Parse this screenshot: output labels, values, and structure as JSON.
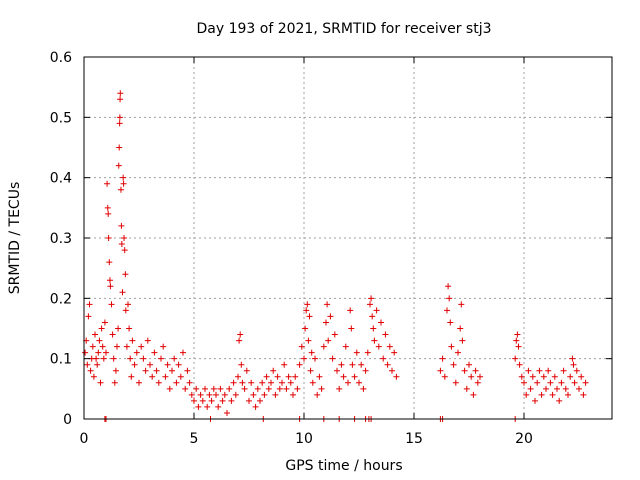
{
  "chart_data": {
    "type": "scatter",
    "title": "Day 193 of 2021, SRMTID for receiver stj3",
    "xlabel": "GPS time / hours",
    "ylabel": "SRMTID / TECUs",
    "xlim": [
      0,
      24
    ],
    "ylim": [
      0,
      0.6
    ],
    "xticks": [
      0,
      5,
      10,
      15,
      20
    ],
    "yticks": [
      0,
      0.1,
      0.2,
      0.3,
      0.4,
      0.5,
      0.6
    ],
    "xtick_labels": [
      "0",
      "5",
      "10",
      "15",
      "20"
    ],
    "ytick_labels": [
      "0",
      "0.1",
      "0.2",
      "0.3",
      "0.4",
      "0.5",
      "0.6"
    ],
    "grid": true,
    "legend": "none",
    "marker": "+",
    "color": "#e00000",
    "series": [
      {
        "name": "SRMTID",
        "points": [
          [
            0.05,
            0.11
          ],
          [
            0.1,
            0.13
          ],
          [
            0.15,
            0.09
          ],
          [
            0.2,
            0.17
          ],
          [
            0.25,
            0.19
          ],
          [
            0.3,
            0.08
          ],
          [
            0.35,
            0.1
          ],
          [
            0.4,
            0.12
          ],
          [
            0.45,
            0.07
          ],
          [
            0.5,
            0.14
          ],
          [
            0.55,
            0.1
          ],
          [
            0.6,
            0.09
          ],
          [
            0.65,
            0.11
          ],
          [
            0.7,
            0.13
          ],
          [
            0.75,
            0.06
          ],
          [
            0.8,
            0.15
          ],
          [
            0.85,
            0.12
          ],
          [
            0.9,
            0.1
          ],
          [
            0.95,
            0.16
          ],
          [
            1.0,
            0.11
          ],
          [
            1.05,
            0.39
          ],
          [
            1.08,
            0.35
          ],
          [
            1.1,
            0.34
          ],
          [
            1.12,
            0.3
          ],
          [
            1.15,
            0.26
          ],
          [
            1.18,
            0.23
          ],
          [
            1.2,
            0.22
          ],
          [
            1.25,
            0.19
          ],
          [
            1.3,
            0.14
          ],
          [
            1.35,
            0.1
          ],
          [
            1.4,
            0.06
          ],
          [
            1.45,
            0.08
          ],
          [
            1.5,
            0.12
          ],
          [
            1.55,
            0.15
          ],
          [
            1.58,
            0.42
          ],
          [
            1.6,
            0.45
          ],
          [
            1.62,
            0.49
          ],
          [
            1.63,
            0.5
          ],
          [
            1.64,
            0.53
          ],
          [
            1.65,
            0.54
          ],
          [
            1.68,
            0.38
          ],
          [
            1.7,
            0.32
          ],
          [
            1.72,
            0.29
          ],
          [
            1.75,
            0.21
          ],
          [
            1.78,
            0.4
          ],
          [
            1.8,
            0.39
          ],
          [
            1.82,
            0.3
          ],
          [
            1.85,
            0.28
          ],
          [
            1.88,
            0.24
          ],
          [
            1.9,
            0.18
          ],
          [
            1.95,
            0.12
          ],
          [
            2.0,
            0.19
          ],
          [
            2.05,
            0.15
          ],
          [
            2.1,
            0.1
          ],
          [
            2.15,
            0.07
          ],
          [
            2.2,
            0.13
          ],
          [
            2.3,
            0.09
          ],
          [
            2.4,
            0.11
          ],
          [
            2.5,
            0.06
          ],
          [
            2.6,
            0.12
          ],
          [
            2.7,
            0.1
          ],
          [
            2.8,
            0.08
          ],
          [
            2.9,
            0.13
          ],
          [
            3.0,
            0.09
          ],
          [
            3.1,
            0.07
          ],
          [
            3.2,
            0.11
          ],
          [
            3.3,
            0.08
          ],
          [
            3.4,
            0.06
          ],
          [
            3.5,
            0.1
          ],
          [
            3.6,
            0.12
          ],
          [
            3.7,
            0.07
          ],
          [
            3.8,
            0.09
          ],
          [
            3.9,
            0.05
          ],
          [
            4.0,
            0.08
          ],
          [
            4.1,
            0.1
          ],
          [
            4.2,
            0.06
          ],
          [
            4.3,
            0.09
          ],
          [
            4.4,
            0.07
          ],
          [
            4.5,
            0.11
          ],
          [
            4.6,
            0.05
          ],
          [
            4.7,
            0.08
          ],
          [
            4.8,
            0.06
          ],
          [
            4.9,
            0.04
          ],
          [
            5.0,
            0.03
          ],
          [
            5.1,
            0.05
          ],
          [
            5.2,
            0.02
          ],
          [
            5.3,
            0.04
          ],
          [
            5.4,
            0.03
          ],
          [
            5.5,
            0.05
          ],
          [
            5.6,
            0.02
          ],
          [
            5.7,
            0.04
          ],
          [
            5.8,
            0.03
          ],
          [
            5.9,
            0.05
          ],
          [
            6.0,
            0.04
          ],
          [
            6.1,
            0.02
          ],
          [
            6.2,
            0.05
          ],
          [
            6.3,
            0.03
          ],
          [
            6.4,
            0.04
          ],
          [
            6.5,
            0.01
          ],
          [
            6.6,
            0.05
          ],
          [
            6.7,
            0.03
          ],
          [
            6.8,
            0.06
          ],
          [
            6.9,
            0.04
          ],
          [
            7.0,
            0.07
          ],
          [
            7.05,
            0.13
          ],
          [
            7.1,
            0.14
          ],
          [
            7.15,
            0.09
          ],
          [
            7.2,
            0.06
          ],
          [
            7.3,
            0.05
          ],
          [
            7.4,
            0.08
          ],
          [
            7.5,
            0.03
          ],
          [
            7.6,
            0.06
          ],
          [
            7.7,
            0.04
          ],
          [
            7.8,
            0.02
          ],
          [
            7.9,
            0.05
          ],
          [
            8.0,
            0.03
          ],
          [
            8.1,
            0.06
          ],
          [
            8.2,
            0.04
          ],
          [
            8.3,
            0.07
          ],
          [
            8.4,
            0.05
          ],
          [
            8.5,
            0.06
          ],
          [
            8.6,
            0.08
          ],
          [
            8.7,
            0.04
          ],
          [
            8.8,
            0.07
          ],
          [
            8.9,
            0.05
          ],
          [
            9.0,
            0.06
          ],
          [
            9.1,
            0.09
          ],
          [
            9.2,
            0.05
          ],
          [
            9.3,
            0.07
          ],
          [
            9.4,
            0.06
          ],
          [
            9.5,
            0.04
          ],
          [
            9.6,
            0.07
          ],
          [
            9.7,
            0.05
          ],
          [
            9.8,
            0.09
          ],
          [
            9.9,
            0.12
          ],
          [
            10.0,
            0.1
          ],
          [
            10.05,
            0.15
          ],
          [
            10.1,
            0.18
          ],
          [
            10.15,
            0.19
          ],
          [
            10.2,
            0.13
          ],
          [
            10.25,
            0.17
          ],
          [
            10.3,
            0.08
          ],
          [
            10.35,
            0.11
          ],
          [
            10.4,
            0.06
          ],
          [
            10.5,
            0.1
          ],
          [
            10.6,
            0.04
          ],
          [
            10.7,
            0.07
          ],
          [
            10.8,
            0.05
          ],
          [
            10.9,
            0.12
          ],
          [
            11.0,
            0.16
          ],
          [
            11.05,
            0.19
          ],
          [
            11.1,
            0.13
          ],
          [
            11.2,
            0.17
          ],
          [
            11.3,
            0.1
          ],
          [
            11.4,
            0.14
          ],
          [
            11.5,
            0.08
          ],
          [
            11.6,
            0.05
          ],
          [
            11.7,
            0.09
          ],
          [
            11.8,
            0.07
          ],
          [
            11.9,
            0.12
          ],
          [
            12.0,
            0.06
          ],
          [
            12.1,
            0.18
          ],
          [
            12.15,
            0.15
          ],
          [
            12.2,
            0.09
          ],
          [
            12.3,
            0.07
          ],
          [
            12.4,
            0.11
          ],
          [
            12.5,
            0.06
          ],
          [
            12.6,
            0.09
          ],
          [
            12.7,
            0.05
          ],
          [
            12.8,
            0.08
          ],
          [
            12.9,
            0.11
          ],
          [
            13.0,
            0.19
          ],
          [
            13.05,
            0.2
          ],
          [
            13.1,
            0.17
          ],
          [
            13.15,
            0.15
          ],
          [
            13.2,
            0.13
          ],
          [
            13.3,
            0.18
          ],
          [
            13.4,
            0.12
          ],
          [
            13.5,
            0.16
          ],
          [
            13.6,
            0.1
          ],
          [
            13.7,
            0.14
          ],
          [
            13.8,
            0.09
          ],
          [
            13.9,
            0.12
          ],
          [
            14.0,
            0.08
          ],
          [
            14.1,
            0.11
          ],
          [
            14.2,
            0.07
          ],
          [
            16.2,
            0.08
          ],
          [
            16.3,
            0.1
          ],
          [
            16.4,
            0.07
          ],
          [
            16.5,
            0.18
          ],
          [
            16.55,
            0.22
          ],
          [
            16.6,
            0.2
          ],
          [
            16.65,
            0.16
          ],
          [
            16.7,
            0.12
          ],
          [
            16.8,
            0.09
          ],
          [
            16.9,
            0.06
          ],
          [
            17.0,
            0.11
          ],
          [
            17.1,
            0.15
          ],
          [
            17.15,
            0.19
          ],
          [
            17.2,
            0.13
          ],
          [
            17.3,
            0.08
          ],
          [
            17.4,
            0.05
          ],
          [
            17.5,
            0.09
          ],
          [
            17.6,
            0.07
          ],
          [
            17.7,
            0.04
          ],
          [
            17.8,
            0.08
          ],
          [
            17.9,
            0.06
          ],
          [
            18.0,
            0.07
          ],
          [
            19.6,
            0.1
          ],
          [
            19.65,
            0.13
          ],
          [
            19.7,
            0.14
          ],
          [
            19.75,
            0.12
          ],
          [
            19.8,
            0.09
          ],
          [
            19.9,
            0.07
          ],
          [
            20.0,
            0.06
          ],
          [
            20.1,
            0.04
          ],
          [
            20.2,
            0.08
          ],
          [
            20.3,
            0.05
          ],
          [
            20.4,
            0.07
          ],
          [
            20.5,
            0.03
          ],
          [
            20.6,
            0.06
          ],
          [
            20.7,
            0.08
          ],
          [
            20.8,
            0.04
          ],
          [
            20.9,
            0.07
          ],
          [
            21.0,
            0.05
          ],
          [
            21.1,
            0.08
          ],
          [
            21.2,
            0.06
          ],
          [
            21.3,
            0.04
          ],
          [
            21.4,
            0.07
          ],
          [
            21.5,
            0.05
          ],
          [
            21.6,
            0.03
          ],
          [
            21.7,
            0.06
          ],
          [
            21.8,
            0.08
          ],
          [
            21.9,
            0.05
          ],
          [
            22.0,
            0.04
          ],
          [
            22.1,
            0.07
          ],
          [
            22.2,
            0.1
          ],
          [
            22.25,
            0.09
          ],
          [
            22.3,
            0.06
          ],
          [
            22.4,
            0.08
          ],
          [
            22.5,
            0.05
          ],
          [
            22.6,
            0.07
          ],
          [
            22.7,
            0.04
          ],
          [
            22.8,
            0.06
          ],
          [
            0.95,
            0
          ],
          [
            1.0,
            0
          ],
          [
            5.75,
            0
          ],
          [
            8.15,
            0
          ],
          [
            9.8,
            0
          ],
          [
            10.9,
            0
          ],
          [
            11.6,
            0
          ],
          [
            12.3,
            0
          ],
          [
            12.8,
            0
          ],
          [
            12.95,
            0
          ],
          [
            13.05,
            0
          ],
          [
            16.2,
            0
          ],
          [
            16.3,
            0
          ],
          [
            19.6,
            0
          ]
        ]
      }
    ]
  }
}
